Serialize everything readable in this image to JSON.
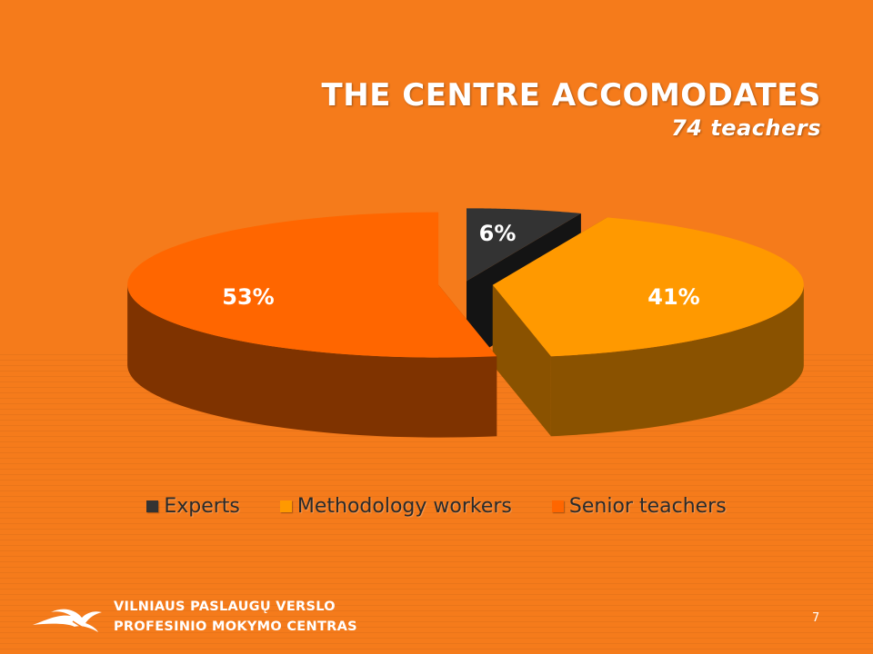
{
  "slide": {
    "title": "THE CENTRE ACCOMODATES",
    "subtitle": "74 teachers",
    "org_line1": "VILNIAUS PASLAUGŲ VERSLO",
    "org_line2": "PROFESINIO MOKYMO CENTRAS",
    "page_number": "7"
  },
  "chart_data": {
    "type": "pie",
    "style": "3d-exploded",
    "legend_position": "bottom",
    "slices": [
      {
        "name": "Experts",
        "value": 6,
        "label": "6%",
        "color": "#333333",
        "side_color": "#141414"
      },
      {
        "name": "Methodology workers",
        "value": 41,
        "label": "41%",
        "color": "#FF9900",
        "side_color": "#8A5200"
      },
      {
        "name": "Senior teachers",
        "value": 53,
        "label": "53%",
        "color": "#FF6600",
        "side_color": "#7F3300"
      }
    ]
  }
}
